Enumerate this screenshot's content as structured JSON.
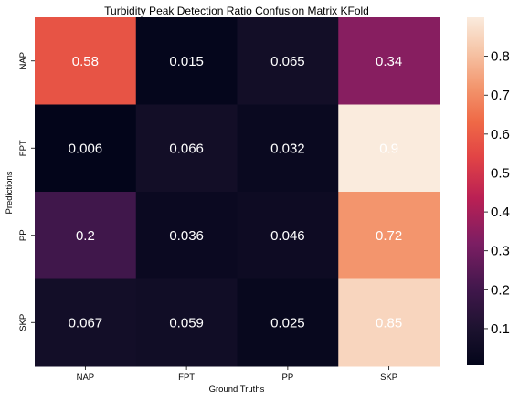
{
  "chart_data": {
    "type": "heatmap",
    "title": "Turbidity Peak Detection Ratio Confusion Matrix KFold",
    "xlabel": "Ground Truths",
    "ylabel": "Predictions",
    "x_categories": [
      "NAP",
      "FPT",
      "PP",
      "SKP"
    ],
    "y_categories": [
      "NAP",
      "FPT",
      "PP",
      "SKP"
    ],
    "values": [
      [
        0.58,
        0.015,
        0.065,
        0.34
      ],
      [
        0.006,
        0.066,
        0.032,
        0.9
      ],
      [
        0.2,
        0.036,
        0.046,
        0.72
      ],
      [
        0.067,
        0.059,
        0.025,
        0.85
      ]
    ],
    "value_labels": [
      [
        "0.58",
        "0.015",
        "0.065",
        "0.34"
      ],
      [
        "0.006",
        "0.066",
        "0.032",
        "0.9"
      ],
      [
        "0.2",
        "0.036",
        "0.046",
        "0.72"
      ],
      [
        "0.067",
        "0.059",
        "0.025",
        "0.85"
      ]
    ],
    "colormap": "rocket",
    "colorbar": {
      "vmin": 0.006,
      "vmax": 0.9,
      "ticks": [
        0.1,
        0.2,
        0.3,
        0.4,
        0.5,
        0.6,
        0.7,
        0.8
      ],
      "tick_labels": [
        "0.1",
        "0.2",
        "0.3",
        "0.4",
        "0.5",
        "0.6",
        "0.7",
        "0.8"
      ]
    },
    "grid": false
  }
}
